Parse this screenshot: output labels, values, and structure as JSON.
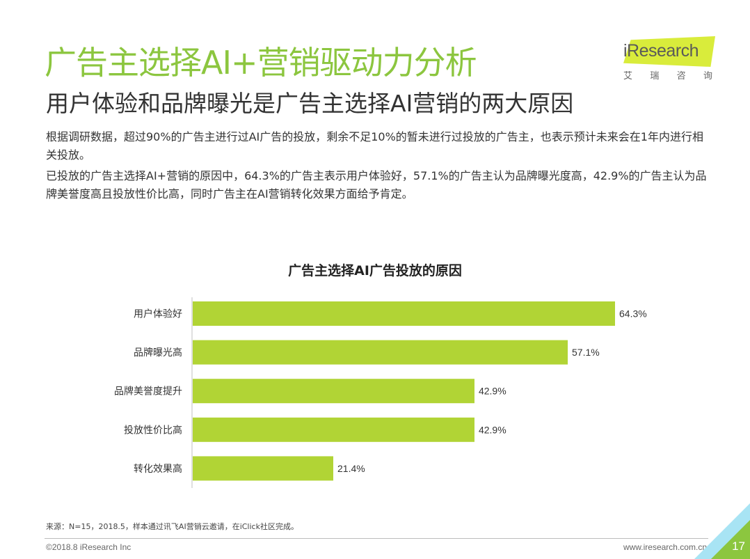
{
  "header": {
    "title": "广告主选择AI+营销驱动力分析",
    "subtitle": "用户体验和品牌曝光是广告主选择AI营销的两大原因"
  },
  "logo": {
    "word": "iResearch",
    "cn_chars": [
      "艾",
      "瑞",
      "咨",
      "询"
    ]
  },
  "body": {
    "paragraph1": "根据调研数据，超过90%的广告主进行过AI广告的投放，剩余不足10%的暂未进行过投放的广告主，也表示预计未来会在1年内进行相关投放。",
    "paragraph2": "已投放的广告主选择AI+营销的原因中，64.3%的广告主表示用户体验好，57.1%的广告主认为品牌曝光度高，42.9%的广告主认为品牌美誉度高且投放性价比高，同时广告主在AI营销转化效果方面给予肯定。"
  },
  "chart_data": {
    "type": "bar",
    "orientation": "horizontal",
    "title": "广告主选择AI广告投放的原因",
    "categories": [
      "用户体验好",
      "品牌曝光高",
      "品牌美誉度提升",
      "投放性价比高",
      "转化效果高"
    ],
    "values": [
      64.3,
      57.1,
      42.9,
      42.9,
      21.4
    ],
    "value_labels": [
      "64.3%",
      "57.1%",
      "42.9%",
      "42.9%",
      "21.4%"
    ],
    "xlim": [
      0,
      70
    ],
    "bar_color": "#b1d435",
    "grid": false,
    "legend": "none"
  },
  "footer": {
    "source": "来源：N=15，2018.5，样本通过讯飞AI营销云邀请，在iClick社区完成。",
    "copyright": "©2018.8 iResearch Inc",
    "website": "www.iresearch.com.cn",
    "page_number": "17"
  },
  "colors": {
    "accent_green": "#8cc63f",
    "bar_green": "#b1d435",
    "logo_yellow": "#d9ec3b",
    "corner_blue": "#a8e4f4"
  }
}
